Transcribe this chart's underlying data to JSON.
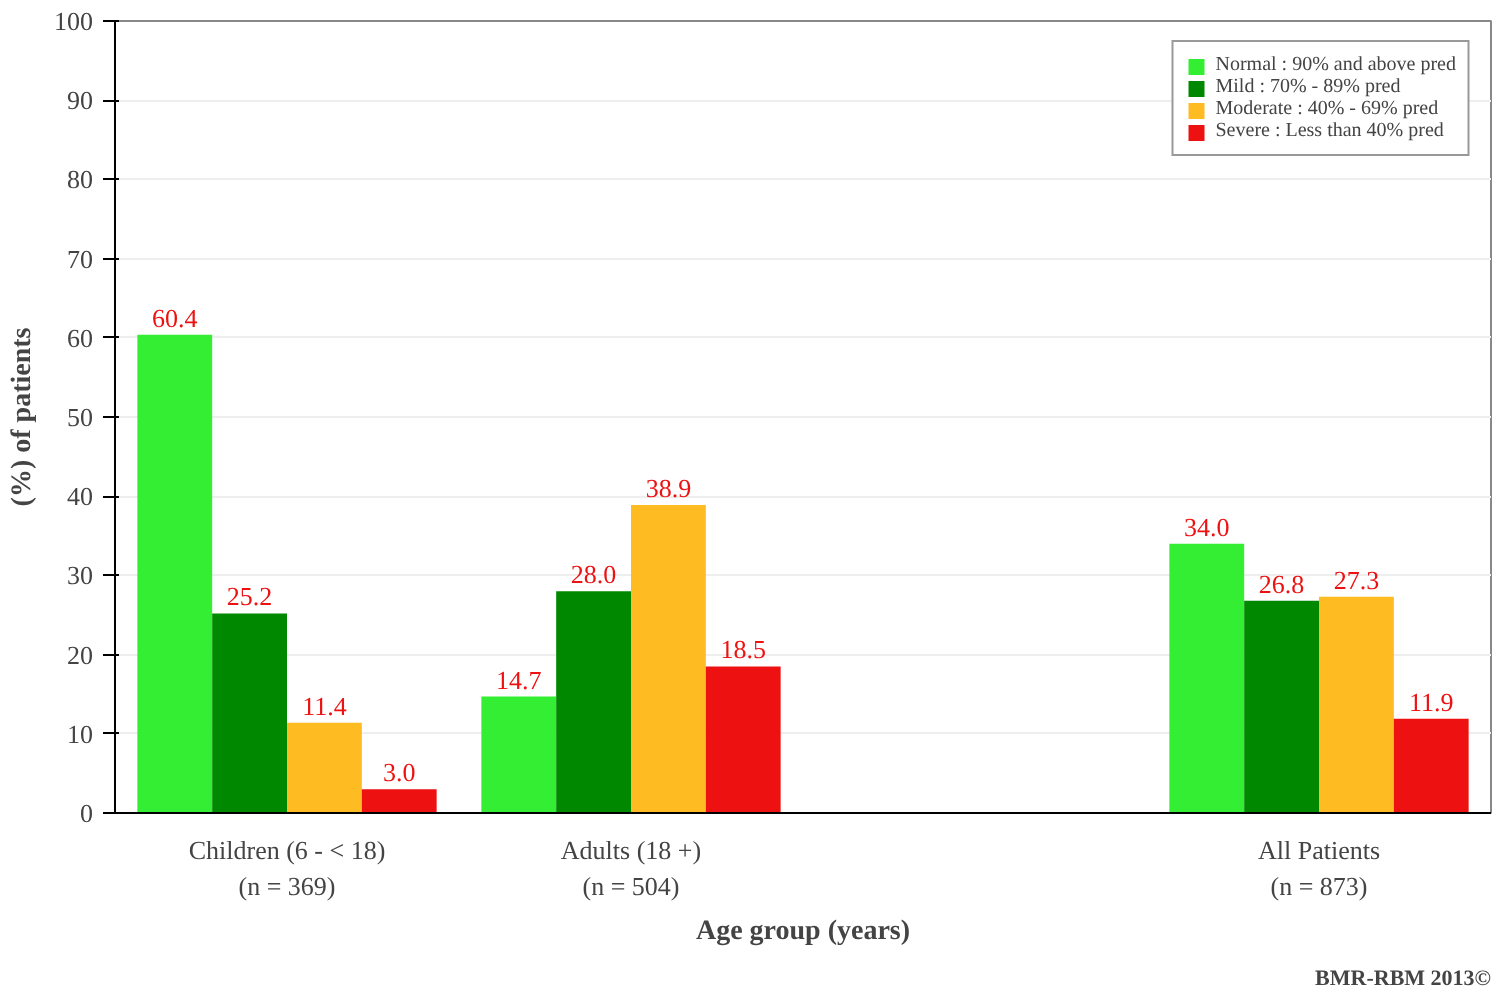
{
  "chart_data": {
    "type": "bar",
    "xlabel": "Age group (years)",
    "ylabel": "(%) of patients",
    "categories": [
      "Children (6 - < 18)\n(n = 369)",
      "Adults (18 +)\n(n = 504)",
      null,
      "All Patients\n(n = 873)"
    ],
    "series": [
      {
        "name": "Normal : 90% and above pred",
        "color": "#33ee33",
        "values": [
          60.4,
          14.7,
          null,
          34.0
        ],
        "value_labels": [
          "60.4",
          "14.7",
          null,
          "34.0"
        ]
      },
      {
        "name": "Mild : 70% - 89% pred",
        "color": "#008800",
        "values": [
          25.2,
          28.0,
          null,
          26.8
        ],
        "value_labels": [
          "25.2",
          "28.0",
          null,
          "26.8"
        ]
      },
      {
        "name": "Moderate : 40% - 69% pred",
        "color": "#ffbb22",
        "values": [
          11.4,
          38.9,
          null,
          27.3
        ],
        "value_labels": [
          "11.4",
          "38.9",
          null,
          "27.3"
        ]
      },
      {
        "name": "Severe : Less than 40% pred",
        "color": "#ee1111",
        "values": [
          3.0,
          18.5,
          null,
          11.9
        ],
        "value_labels": [
          "3.0",
          "18.5",
          null,
          "11.9"
        ]
      }
    ],
    "ylim": [
      0,
      100
    ],
    "yticks": [
      0,
      10,
      20,
      30,
      40,
      50,
      60,
      70,
      80,
      90,
      100
    ],
    "grid": "y",
    "legend": "top right",
    "annotations": [
      "BMR-RBM 2013©"
    ]
  }
}
